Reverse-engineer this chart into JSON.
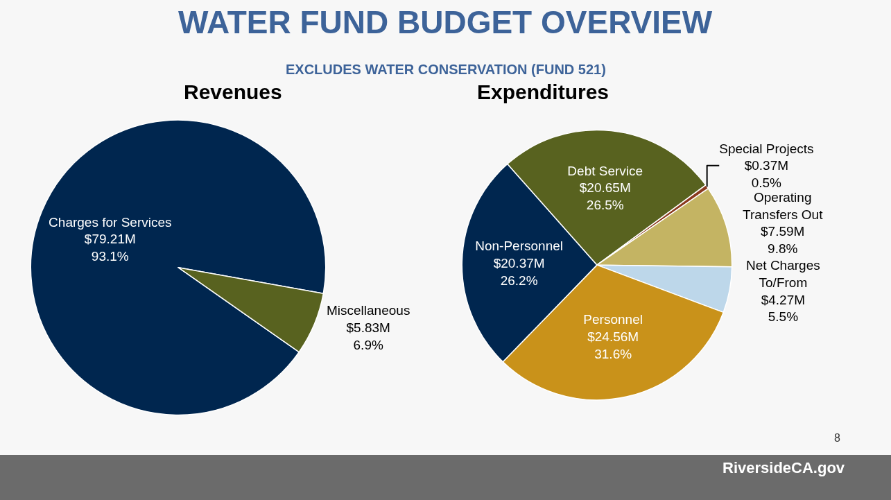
{
  "chart_data": [
    {
      "type": "pie",
      "title": "Revenues",
      "categories": [
        "Charges for Services",
        "Miscellaneous"
      ],
      "values": [
        93.1,
        6.9
      ],
      "value_labels": [
        "$79.21M\n93.1%",
        "$5.83M\n6.9%"
      ],
      "colors": [
        "#00264f",
        "#58621f"
      ],
      "annotations": [
        "WATER FUND BUDGET OVERVIEW",
        "EXCLUDES WATER CONSERVATION (FUND 521)"
      ]
    },
    {
      "type": "pie",
      "title": "Expenditures",
      "categories": [
        "Debt Service",
        "Special Projects",
        "Operating\nTransfers Out",
        "Net Charges\nTo/From",
        "Personnel",
        "Non-Personnel"
      ],
      "values": [
        26.5,
        0.5,
        9.8,
        5.5,
        31.6,
        26.2
      ],
      "value_labels": [
        "$20.65M\n26.5%",
        "$0.37M\n0.5%",
        "$7.59M\n9.8%",
        "$4.27M\n5.5%",
        "$24.56M\n31.6%",
        "$20.37M\n26.2%"
      ],
      "colors": [
        "#58621f",
        "#8b3a1f",
        "#c4b463",
        "#bdd7ea",
        "#c9921a",
        "#00264f"
      ],
      "annotations": [
        "8",
        "RiversideCA.gov"
      ]
    }
  ]
}
